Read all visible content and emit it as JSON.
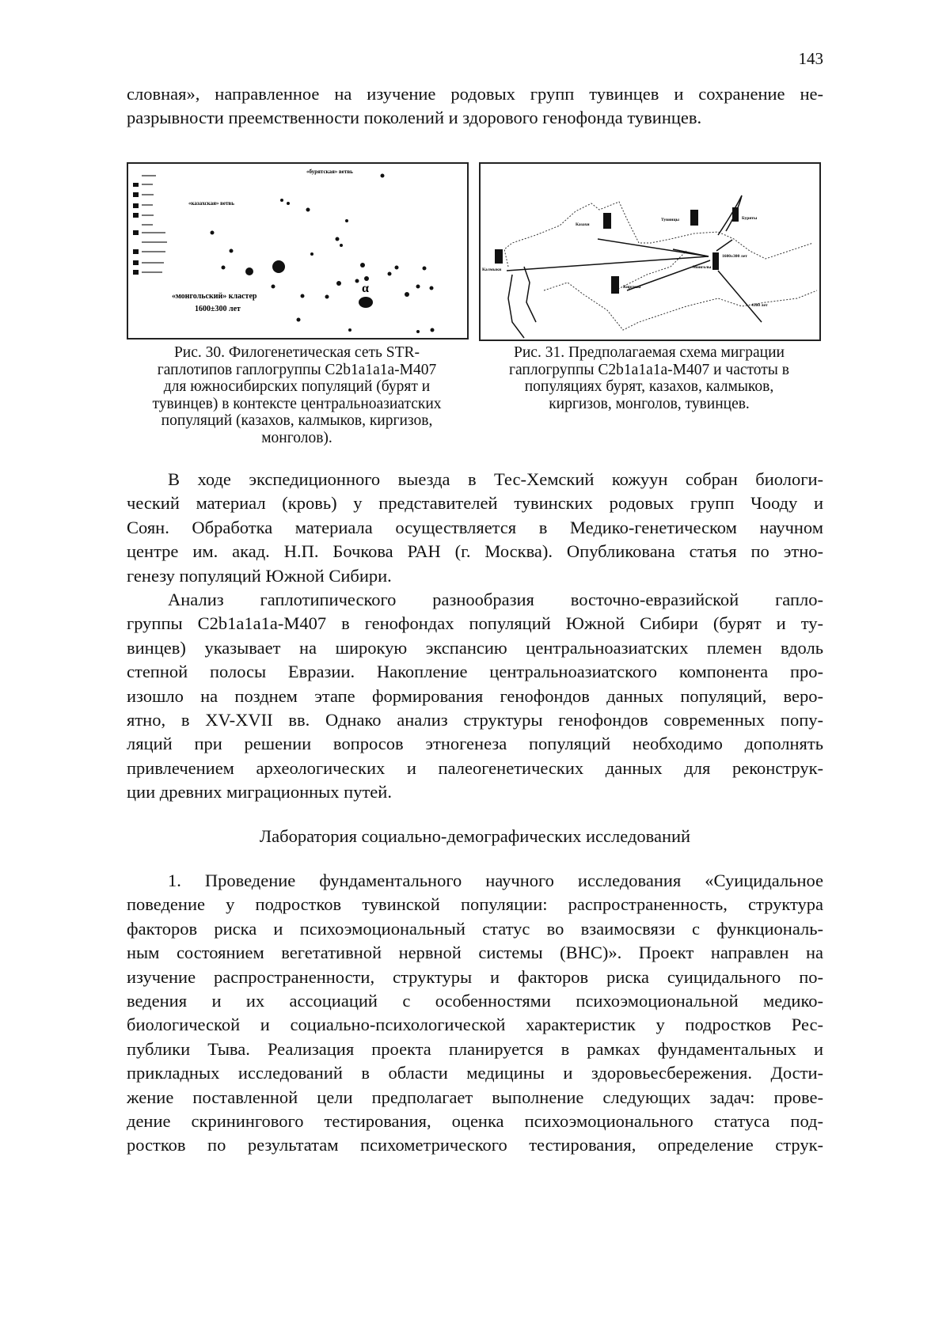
{
  "page_number": "143",
  "intro_lines": [
    "словная», направленное на изучение родовых групп тувинцев и сохранение не-",
    "разрывности преемственности поколений и здорового генофонда тувинцев."
  ],
  "figure30": {
    "labels": {
      "buryat_branch": "«бурятская» ветвь",
      "kazakh_branch": "«казахская» ветвь",
      "mongol_cluster": "«монгольский» кластер",
      "age": "1600±300 лет",
      "alpha": "α"
    },
    "caption": [
      "Рис. 30. Филогенетическая сеть STR-",
      "гаплотипов гаплогруппы C2b1a1a1a-M407",
      "для южносибирских популяций (бурят и",
      "тувинцев) в контексте центральноазиатских",
      "популяций (казахов, калмыков, киргизов,",
      "монголов)."
    ]
  },
  "figure31": {
    "labels": {
      "kazakhs": "Казахи",
      "tuvans": "Тувинцы",
      "buryats": "Буряты",
      "kalmyks": "Калмыки",
      "mongols": "Монголы",
      "kyrgyz": "Киргизы",
      "age1": "1600±300 лет",
      "age2": "4300 лет"
    },
    "caption": [
      "Рис. 31. Предполагаемая схема миграции",
      "гаплогруппы C2b1a1a1a-M407 и частоты в",
      "популяциях бурят, казахов, калмыков,",
      "киргизов, монголов, тувинцев."
    ]
  },
  "para1_lines": [
    "В ходе экспедиционного выезда в Тес-Хемский кожуун собран биологи-",
    "ческий материал (кровь) у представителей тувинских родовых групп Чооду и",
    "Соян. Обработка материала осуществляется в Медико-генетическом научном",
    "центре им. акад. Н.П. Бочкова РАН (г. Москва). Опубликована статья по этно-",
    "генезу популяций Южной Сибири."
  ],
  "para2_lines": [
    "Анализ гаплотипического разнообразия восточно-евразийской гапло-",
    "группы C2b1a1a1a-M407 в генофондах популяций Южной Сибири (бурят и ту-",
    "винцев) указывает на широкую экспансию центральноазиатских племен вдоль",
    "степной полосы Евразии. Накопление центральноазиатского компонента про-",
    "изошло на позднем этапе формирования генофондов данных популяций, веро-",
    "ятно, в XV-XVII вв. Однако анализ структуры генофондов современных попу-",
    "ляций при решении вопросов этногенеза популяций необходимо дополнять",
    "привлечением археологических и палеогенетических данных для реконструк-",
    "ции древних миграционных путей."
  ],
  "section_heading": "Лаборатория социально-демографических исследований",
  "para3_lines": [
    "1. Проведение фундаментального научного исследования «Суицидальное",
    "поведение у подростков тувинской популяции: распространенность, структура",
    "факторов риска и психоэмоциональный статус во взаимосвязи с функциональ-",
    "ным состоянием вегетативной нервной системы (ВНС)». Проект направлен на",
    "изучение распространенности, структуры и факторов риска суицидального по-",
    "ведения и их ассоциаций с особенностями психоэмоциональной медико-",
    "биологической и социально-психологической характеристик у подростков Рес-",
    "публики Тыва. Реализация проекта планируется в рамках фундаментальных и",
    "прикладных исследований в области медицины и здоровьесбережения. Дости-",
    "жение поставленной цели предполагает выполнение следующих задач: прове-",
    "дение скринингового тестирования, оценка психоэмоционального статуса под-",
    "ростков по результатам психометрического тестирования, определение струк-"
  ]
}
